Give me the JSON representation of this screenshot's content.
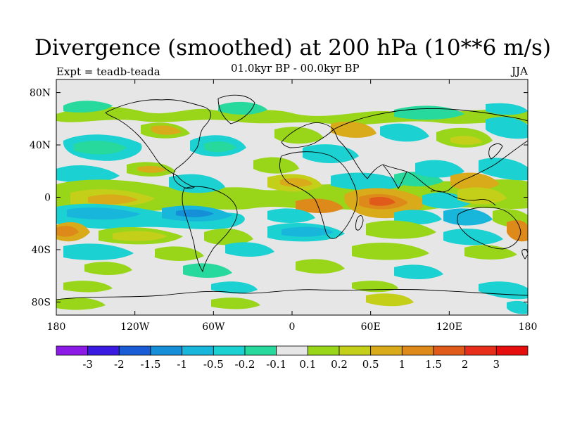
{
  "title": "Divergence (smoothed) at 200 hPa (10**6 m/s)",
  "experiment": "Expt = teadb-teada",
  "period": "01.0kyr BP - 00.0kyr BP",
  "season": "JJA",
  "map": {
    "projection": "cylindrical equidistant",
    "lon_range": [
      -180,
      180
    ],
    "lat_range": [
      -90,
      90
    ],
    "background_color": "#e6e6e6",
    "lat_ticks": [
      {
        "value": 80,
        "label": "80N"
      },
      {
        "value": 40,
        "label": "40N"
      },
      {
        "value": 0,
        "label": "0"
      },
      {
        "value": -40,
        "label": "40S"
      },
      {
        "value": -80,
        "label": "80S"
      }
    ],
    "lon_ticks": [
      {
        "value": -180,
        "label": "180"
      },
      {
        "value": -120,
        "label": "120W"
      },
      {
        "value": -60,
        "label": "60W"
      },
      {
        "value": 0,
        "label": "0"
      },
      {
        "value": 60,
        "label": "60E"
      },
      {
        "value": 120,
        "label": "120E"
      },
      {
        "value": 180,
        "label": "180"
      }
    ]
  },
  "colorbar": {
    "colors": [
      "#8c1ae6",
      "#3a1ae0",
      "#1a5cd6",
      "#168fd9",
      "#18b6db",
      "#1bd1d1",
      "#27d99c",
      "#e6e6e6",
      "#99d61a",
      "#c4cf1a",
      "#d9aa1a",
      "#de8a1a",
      "#e05a1a",
      "#e62e1a",
      "#e60d0d"
    ],
    "labels": [
      "-3",
      "-2",
      "-1.5",
      "-1",
      "-0.5",
      "-0.2",
      "-0.1",
      "0.1",
      "0.2",
      "0.5",
      "1",
      "1.5",
      "2",
      "3"
    ]
  }
}
